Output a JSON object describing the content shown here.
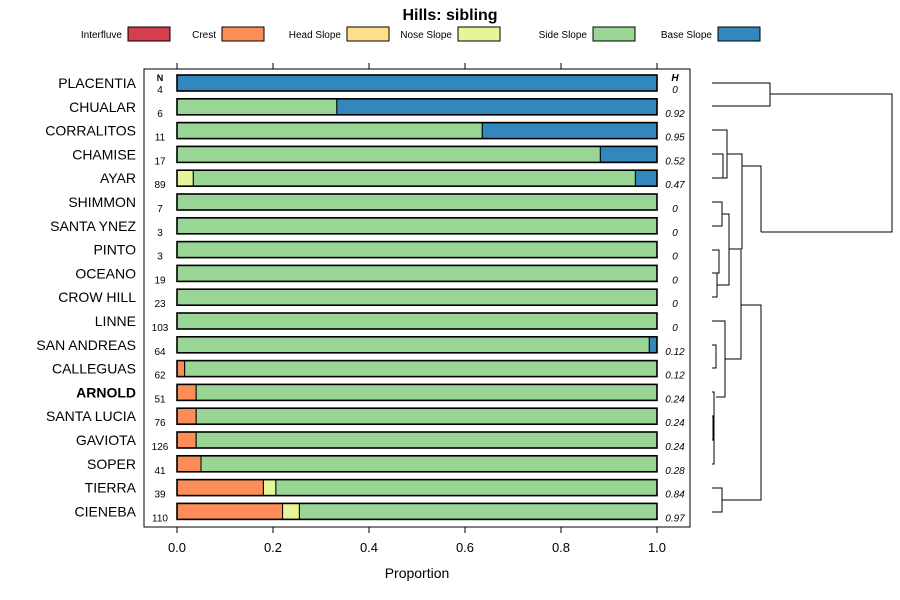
{
  "chart_data": {
    "type": "bar",
    "stacked": true,
    "orientation": "horizontal",
    "title": "Hills: sibling",
    "xlabel": "Proportion",
    "ylabel": "",
    "xlim": [
      0,
      1
    ],
    "x_ticks": [
      "0.0",
      "0.2",
      "0.4",
      "0.6",
      "0.8",
      "1.0"
    ],
    "n_header": "N",
    "h_header": "H",
    "highlight": "ARNOLD",
    "legend_position": "top",
    "legend": [
      {
        "name": "Interfluve",
        "color": "#D53E4F"
      },
      {
        "name": "Crest",
        "color": "#FC8D59"
      },
      {
        "name": "Head Slope",
        "color": "#FEE08B"
      },
      {
        "name": "Nose Slope",
        "color": "#E6F598"
      },
      {
        "name": "Side Slope",
        "color": "#99D594"
      },
      {
        "name": "Base Slope",
        "color": "#3288BD"
      }
    ],
    "categories": [
      "PLACENTIA",
      "CHUALAR",
      "CORRALITOS",
      "CHAMISE",
      "AYAR",
      "SHIMMON",
      "SANTA YNEZ",
      "PINTO",
      "OCEANO",
      "CROW HILL",
      "LINNE",
      "SAN ANDREAS",
      "CALLEGUAS",
      "ARNOLD",
      "SANTA LUCIA",
      "GAVIOTA",
      "SOPER",
      "TIERRA",
      "CIENEBA"
    ],
    "n": [
      "4",
      "6",
      "11",
      "17",
      "89",
      "7",
      "3",
      "3",
      "19",
      "23",
      "103",
      "64",
      "62",
      "51",
      "76",
      "126",
      "41",
      "39",
      "110"
    ],
    "h": [
      "0",
      "0.92",
      "0.95",
      "0.52",
      "0.47",
      "0",
      "0",
      "0",
      "0",
      "0",
      "0",
      "0.12",
      "0.12",
      "0.24",
      "0.24",
      "0.24",
      "0.28",
      "0.84",
      "0.97"
    ],
    "series": [
      {
        "name": "Interfluve",
        "values": [
          0,
          0,
          0,
          0,
          0,
          0,
          0,
          0,
          0,
          0,
          0,
          0,
          0,
          0,
          0,
          0,
          0,
          0,
          0
        ]
      },
      {
        "name": "Crest",
        "values": [
          0,
          0,
          0,
          0,
          0,
          0,
          0,
          0,
          0,
          0,
          0,
          0,
          0.016,
          0.04,
          0.04,
          0.04,
          0.05,
          0.18,
          0.22
        ]
      },
      {
        "name": "Head Slope",
        "values": [
          0,
          0,
          0,
          0,
          0,
          0,
          0,
          0,
          0,
          0,
          0,
          0,
          0,
          0,
          0,
          0,
          0,
          0,
          0
        ]
      },
      {
        "name": "Nose Slope",
        "values": [
          0,
          0,
          0,
          0,
          0.034,
          0,
          0,
          0,
          0,
          0,
          0,
          0,
          0,
          0,
          0,
          0,
          0,
          0.026,
          0.035
        ]
      },
      {
        "name": "Side Slope",
        "values": [
          0,
          0.333,
          0.636,
          0.882,
          0.921,
          1,
          1,
          1,
          1,
          1,
          1,
          0.984,
          0.984,
          0.96,
          0.96,
          0.96,
          0.95,
          0.794,
          0.745
        ]
      },
      {
        "name": "Base Slope",
        "values": [
          1,
          0.667,
          0.364,
          0.118,
          0.045,
          0,
          0,
          0,
          0,
          0,
          0,
          0.016,
          0,
          0,
          0,
          0,
          0,
          0,
          0
        ]
      }
    ]
  }
}
